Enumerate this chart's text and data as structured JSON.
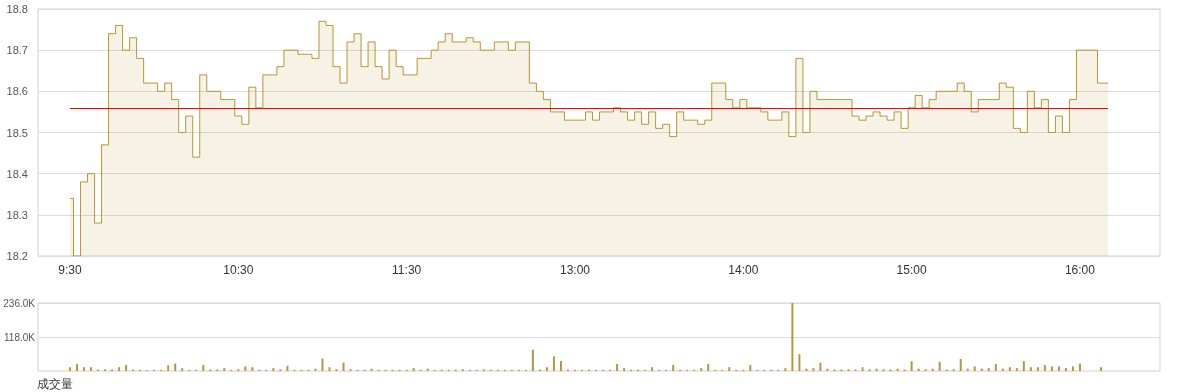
{
  "chart_data": [
    {
      "type": "step",
      "marker": "none",
      "grid": "y",
      "categories": [
        "9:30",
        null,
        null,
        null,
        null,
        null,
        null,
        null,
        null,
        null,
        null,
        null,
        null,
        null,
        null,
        null,
        null,
        null,
        null,
        null,
        null,
        null,
        null,
        null,
        "10:30",
        null,
        null,
        null,
        null,
        null,
        null,
        null,
        null,
        null,
        null,
        null,
        null,
        null,
        null,
        null,
        null,
        null,
        null,
        null,
        null,
        null,
        null,
        null,
        "11:30",
        null,
        null,
        null,
        null,
        null,
        null,
        null,
        null,
        null,
        null,
        null,
        null,
        null,
        null,
        null,
        null,
        null,
        null,
        null,
        null,
        null,
        null,
        null,
        "13:00",
        null,
        null,
        null,
        null,
        null,
        null,
        null,
        null,
        null,
        null,
        null,
        null,
        null,
        null,
        null,
        null,
        null,
        null,
        null,
        null,
        null,
        null,
        null,
        "14:00",
        null,
        null,
        null,
        null,
        null,
        null,
        null,
        null,
        null,
        null,
        null,
        null,
        null,
        null,
        null,
        null,
        null,
        null,
        null,
        null,
        null,
        null,
        null,
        "15:00",
        null,
        null,
        null,
        null,
        null,
        null,
        null,
        null,
        null,
        null,
        null,
        null,
        null,
        null,
        null,
        null,
        null,
        null,
        null,
        null,
        null,
        null,
        null,
        "16:00",
        null,
        null,
        null,
        null
      ],
      "series": [
        {
          "color": "#b8962e",
          "values": [
            18.34,
            18.2,
            18.38,
            18.4,
            18.28,
            18.47,
            18.74,
            18.76,
            18.7,
            18.73,
            18.68,
            18.62,
            18.62,
            18.6,
            18.62,
            18.58,
            18.5,
            18.54,
            18.44,
            18.64,
            18.6,
            18.6,
            18.58,
            18.58,
            18.54,
            18.52,
            18.61,
            18.56,
            18.64,
            18.64,
            18.66,
            18.7,
            18.7,
            18.69,
            18.69,
            18.68,
            18.77,
            18.76,
            18.66,
            18.62,
            18.72,
            18.74,
            18.66,
            18.72,
            18.66,
            18.63,
            18.7,
            18.66,
            18.64,
            18.64,
            18.68,
            18.68,
            18.7,
            18.72,
            18.74,
            18.72,
            18.72,
            18.73,
            18.72,
            18.7,
            18.7,
            18.72,
            18.72,
            18.7,
            18.72,
            18.72,
            18.62,
            18.6,
            18.58,
            18.55,
            18.55,
            18.53,
            18.53,
            18.53,
            18.55,
            18.53,
            18.55,
            18.55,
            18.56,
            18.55,
            18.53,
            18.55,
            18.52,
            18.55,
            18.51,
            18.52,
            18.49,
            18.55,
            18.53,
            18.53,
            18.52,
            18.53,
            18.62,
            18.62,
            18.58,
            18.56,
            18.58,
            18.56,
            18.56,
            18.55,
            18.53,
            18.53,
            18.55,
            18.49,
            18.68,
            18.5,
            18.6,
            18.58,
            18.58,
            18.58,
            18.58,
            18.58,
            18.54,
            18.53,
            18.54,
            18.55,
            18.54,
            18.53,
            18.55,
            18.51,
            18.56,
            18.59,
            18.56,
            18.58,
            18.6,
            18.6,
            18.6,
            18.62,
            18.6,
            18.55,
            18.58,
            18.58,
            18.58,
            18.62,
            18.61,
            18.51,
            18.5,
            18.6,
            18.56,
            18.58,
            18.5,
            18.54,
            18.5,
            18.58,
            18.7,
            18.7,
            18.7,
            18.62,
            18.62
          ]
        }
      ],
      "ylim": [
        18.2,
        18.8
      ],
      "yticks": [
        18.2,
        18.3,
        18.4,
        18.5,
        18.6,
        18.7,
        18.8
      ],
      "ref_lines": [
        {
          "axis": "y",
          "value": 18.56,
          "color": "#ff0000"
        }
      ]
    },
    {
      "type": "bar",
      "grid": "y",
      "xlabel": "成交量",
      "color": "#b8963e",
      "categories": [
        null,
        null,
        null,
        null,
        null,
        null,
        null,
        null,
        null,
        null,
        null,
        null,
        null,
        null,
        null,
        null,
        null,
        null,
        null,
        null,
        null,
        null,
        null,
        null,
        null,
        null,
        null,
        null,
        null,
        null,
        null,
        null,
        null,
        null,
        null,
        null,
        null,
        null,
        null,
        null,
        null,
        null,
        null,
        null,
        null,
        null,
        null,
        null,
        null,
        null,
        null,
        null,
        null,
        null,
        null,
        null,
        null,
        null,
        null,
        null,
        null,
        null,
        null,
        null,
        null,
        null,
        null,
        null,
        null,
        null,
        null,
        null,
        null,
        null,
        null,
        null,
        null,
        null,
        null,
        null,
        null,
        null,
        null,
        null,
        null,
        null,
        null,
        null,
        null,
        null,
        null,
        null,
        null,
        null,
        null,
        null,
        null,
        null,
        null,
        null,
        null,
        null,
        null,
        null,
        null,
        null,
        null,
        null,
        null,
        null,
        null,
        null,
        null,
        null,
        null,
        null,
        null,
        null,
        null,
        null,
        null,
        null,
        null,
        null,
        null,
        null,
        null,
        null,
        null,
        null,
        null,
        null,
        null,
        null,
        null,
        null,
        null,
        null,
        null,
        null,
        null,
        null,
        null,
        null,
        null,
        null,
        null,
        null,
        null
      ],
      "values": [
        13000,
        24000,
        13000,
        13000,
        5000,
        6000,
        5000,
        13000,
        21000,
        5000,
        4000,
        3000,
        4000,
        4000,
        20000,
        26000,
        10000,
        4000,
        4000,
        21000,
        5000,
        5000,
        10000,
        4000,
        6000,
        16000,
        13000,
        4000,
        4000,
        10000,
        6000,
        18000,
        4000,
        4000,
        4000,
        8000,
        43000,
        13000,
        6000,
        29000,
        6000,
        4000,
        4000,
        8000,
        4000,
        4000,
        4000,
        4000,
        4000,
        10000,
        4000,
        8000,
        4000,
        4000,
        4000,
        5000,
        6000,
        4000,
        4000,
        6000,
        4000,
        4000,
        4000,
        4000,
        4000,
        4000,
        74000,
        5000,
        13000,
        51000,
        35000,
        5000,
        4000,
        4000,
        4000,
        4000,
        4000,
        4000,
        24000,
        10000,
        4000,
        5000,
        4000,
        13000,
        4000,
        4000,
        21000,
        4000,
        4000,
        4000,
        10000,
        24000,
        4000,
        4000,
        13000,
        4000,
        4000,
        21000,
        4000,
        4000,
        4000,
        4000,
        10000,
        236000,
        58000,
        8000,
        10000,
        29000,
        8000,
        5000,
        5000,
        6000,
        5000,
        13000,
        6000,
        8000,
        6000,
        5000,
        8000,
        5000,
        34000,
        8000,
        6000,
        8000,
        32000,
        5000,
        6000,
        42000,
        8000,
        16000,
        8000,
        10000,
        24000,
        8000,
        13000,
        10000,
        34000,
        13000,
        13000,
        21000,
        16000,
        16000,
        10000,
        16000,
        26000,
        0,
        0,
        13000,
        0
      ],
      "ylim": [
        0,
        236000
      ],
      "yticks": [
        {
          "value": 118000,
          "label": "118.0K"
        },
        {
          "value": 236000,
          "label": "236.0K"
        }
      ]
    }
  ]
}
